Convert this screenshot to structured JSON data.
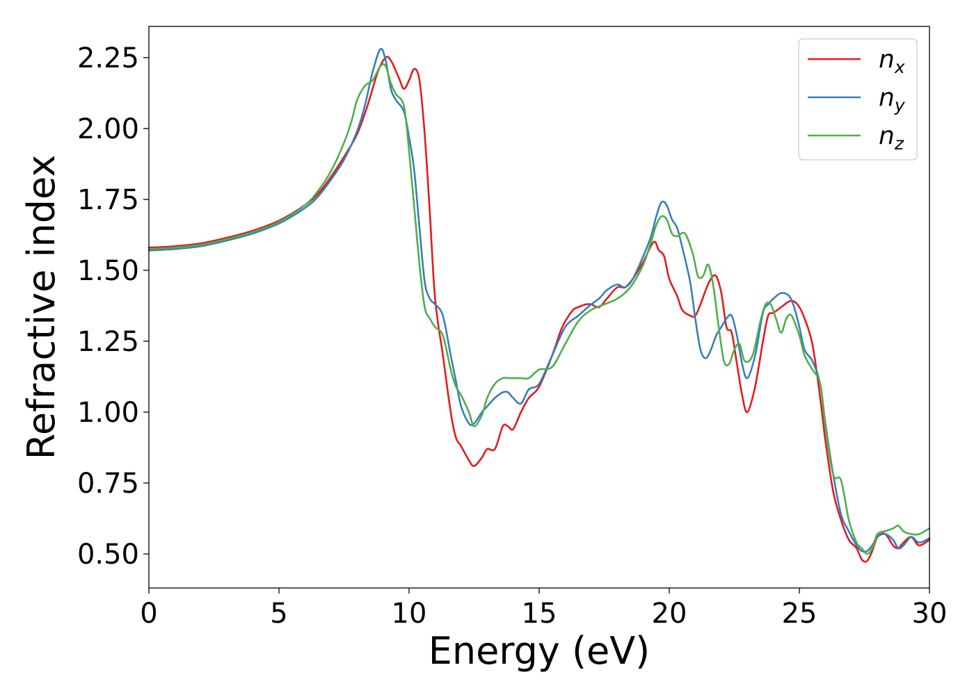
{
  "chart_data": {
    "type": "line",
    "title": "",
    "xlabel": "Energy (eV)",
    "ylabel": "Refractive index",
    "xlim": [
      0,
      30
    ],
    "ylim": [
      0.38,
      2.36
    ],
    "xticks": [
      0,
      5,
      10,
      15,
      20,
      25,
      30
    ],
    "yticks": [
      0.5,
      0.75,
      1.0,
      1.25,
      1.5,
      1.75,
      2.0,
      2.25
    ],
    "xtick_labels": [
      "0",
      "5",
      "10",
      "15",
      "20",
      "25",
      "30"
    ],
    "ytick_labels": [
      "0.50",
      "0.75",
      "1.00",
      "1.25",
      "1.50",
      "1.75",
      "2.00",
      "2.25"
    ],
    "grid": false,
    "legend_position": "top-right",
    "series": [
      {
        "name": "n",
        "subscript": "x",
        "color": "#e41a1c",
        "x": [
          0,
          1,
          2,
          3,
          4,
          5,
          6,
          6.5,
          7,
          7.5,
          8,
          8.4,
          8.8,
          9.1,
          9.3,
          9.6,
          9.8,
          10.0,
          10.2,
          10.4,
          10.6,
          10.8,
          11.0,
          11.3,
          11.6,
          11.8,
          12.0,
          12.3,
          12.5,
          12.8,
          13.0,
          13.3,
          13.6,
          13.8,
          14.0,
          14.3,
          14.6,
          15.0,
          15.5,
          15.8,
          16.0,
          16.3,
          16.5,
          16.8,
          17.0,
          17.3,
          17.6,
          18.0,
          18.3,
          18.6,
          19.0,
          19.4,
          19.6,
          19.8,
          20.0,
          20.3,
          20.5,
          20.8,
          21.0,
          21.2,
          21.4,
          21.6,
          21.8,
          22.0,
          22.2,
          22.4,
          22.6,
          22.8,
          23.0,
          23.3,
          23.6,
          23.8,
          24.0,
          24.3,
          24.6,
          24.8,
          25.0,
          25.2,
          25.5,
          25.8,
          26.0,
          26.3,
          26.6,
          26.9,
          27.2,
          27.4,
          27.6,
          27.8,
          28.0,
          28.3,
          28.6,
          28.8,
          29.0,
          29.3,
          29.6,
          30.0
        ],
        "values": [
          1.58,
          1.585,
          1.595,
          1.615,
          1.64,
          1.675,
          1.73,
          1.77,
          1.83,
          1.9,
          1.98,
          2.08,
          2.2,
          2.25,
          2.24,
          2.18,
          2.14,
          2.17,
          2.21,
          2.17,
          1.98,
          1.7,
          1.4,
          1.2,
          1.0,
          0.91,
          0.88,
          0.83,
          0.81,
          0.84,
          0.87,
          0.87,
          0.95,
          0.95,
          0.94,
          1.0,
          1.05,
          1.09,
          1.2,
          1.28,
          1.32,
          1.36,
          1.37,
          1.38,
          1.38,
          1.37,
          1.4,
          1.44,
          1.44,
          1.47,
          1.53,
          1.6,
          1.57,
          1.55,
          1.47,
          1.41,
          1.36,
          1.34,
          1.34,
          1.38,
          1.43,
          1.47,
          1.48,
          1.42,
          1.3,
          1.28,
          1.17,
          1.06,
          1.0,
          1.09,
          1.25,
          1.34,
          1.35,
          1.37,
          1.39,
          1.39,
          1.37,
          1.33,
          1.24,
          1.05,
          0.9,
          0.72,
          0.62,
          0.55,
          0.52,
          0.48,
          0.475,
          0.51,
          0.56,
          0.57,
          0.53,
          0.52,
          0.54,
          0.56,
          0.53,
          0.55
        ]
      },
      {
        "name": "n",
        "subscript": "y",
        "color": "#377eb8",
        "x": [
          0,
          1,
          2,
          3,
          4,
          5,
          6,
          6.5,
          7,
          7.5,
          8,
          8.3,
          8.6,
          8.9,
          9.1,
          9.3,
          9.5,
          9.8,
          10.0,
          10.2,
          10.4,
          10.6,
          10.8,
          11.0,
          11.3,
          11.6,
          11.8,
          12.0,
          12.3,
          12.5,
          12.8,
          13.0,
          13.3,
          13.6,
          13.8,
          14.0,
          14.3,
          14.6,
          15.0,
          15.5,
          16.0,
          16.5,
          17.0,
          17.3,
          17.6,
          18.0,
          18.3,
          18.6,
          19.0,
          19.3,
          19.5,
          19.7,
          19.9,
          20.1,
          20.3,
          20.5,
          20.8,
          21.0,
          21.2,
          21.4,
          21.6,
          21.8,
          22.0,
          22.2,
          22.4,
          22.6,
          22.8,
          23.0,
          23.3,
          23.6,
          23.8,
          24.0,
          24.3,
          24.6,
          24.8,
          25.0,
          25.2,
          25.5,
          25.8,
          26.0,
          26.3,
          26.6,
          26.9,
          27.2,
          27.4,
          27.6,
          27.8,
          28.0,
          28.3,
          28.6,
          28.8,
          29.0,
          29.3,
          29.6,
          30.0
        ],
        "values": [
          1.57,
          1.575,
          1.585,
          1.605,
          1.63,
          1.665,
          1.72,
          1.76,
          1.82,
          1.89,
          1.99,
          2.08,
          2.2,
          2.28,
          2.24,
          2.14,
          2.1,
          2.06,
          1.97,
          1.85,
          1.65,
          1.46,
          1.4,
          1.38,
          1.34,
          1.2,
          1.11,
          1.02,
          0.96,
          0.96,
          1.0,
          1.02,
          1.05,
          1.07,
          1.07,
          1.05,
          1.03,
          1.08,
          1.1,
          1.2,
          1.3,
          1.34,
          1.38,
          1.4,
          1.43,
          1.45,
          1.44,
          1.47,
          1.55,
          1.62,
          1.69,
          1.74,
          1.73,
          1.68,
          1.65,
          1.58,
          1.46,
          1.33,
          1.22,
          1.19,
          1.22,
          1.27,
          1.3,
          1.33,
          1.34,
          1.27,
          1.17,
          1.12,
          1.2,
          1.35,
          1.38,
          1.4,
          1.42,
          1.41,
          1.37,
          1.3,
          1.22,
          1.18,
          1.1,
          0.96,
          0.78,
          0.64,
          0.58,
          0.53,
          0.51,
          0.51,
          0.53,
          0.56,
          0.57,
          0.55,
          0.52,
          0.53,
          0.56,
          0.54,
          0.555
        ]
      },
      {
        "name": "n",
        "subscript": "z",
        "color": "#4daf4a",
        "x": [
          0,
          1,
          2,
          3,
          4,
          5,
          6,
          6.5,
          7,
          7.5,
          7.8,
          8.0,
          8.3,
          8.6,
          8.9,
          9.1,
          9.3,
          9.5,
          9.8,
          10.0,
          10.2,
          10.4,
          10.6,
          10.8,
          11.0,
          11.3,
          11.6,
          11.8,
          12.0,
          12.3,
          12.5,
          12.8,
          13.0,
          13.3,
          13.6,
          13.8,
          14.0,
          14.3,
          14.6,
          15.0,
          15.5,
          16.0,
          16.5,
          17.0,
          17.5,
          18.0,
          18.5,
          19.0,
          19.3,
          19.5,
          19.7,
          19.9,
          20.1,
          20.3,
          20.6,
          20.9,
          21.1,
          21.3,
          21.5,
          21.7,
          21.9,
          22.1,
          22.3,
          22.5,
          22.7,
          22.9,
          23.2,
          23.5,
          23.7,
          23.9,
          24.1,
          24.3,
          24.5,
          24.7,
          25.0,
          25.2,
          25.5,
          25.8,
          26.0,
          26.3,
          26.6,
          26.9,
          27.2,
          27.4,
          27.6,
          27.8,
          28.0,
          28.3,
          28.6,
          28.8,
          29.0,
          29.3,
          29.6,
          30.0
        ],
        "values": [
          1.575,
          1.58,
          1.59,
          1.61,
          1.635,
          1.67,
          1.73,
          1.78,
          1.85,
          1.95,
          2.03,
          2.1,
          2.15,
          2.17,
          2.22,
          2.22,
          2.16,
          2.12,
          2.08,
          1.92,
          1.72,
          1.52,
          1.37,
          1.33,
          1.3,
          1.27,
          1.15,
          1.09,
          1.06,
          1.0,
          0.95,
          0.99,
          1.05,
          1.1,
          1.12,
          1.12,
          1.12,
          1.12,
          1.12,
          1.15,
          1.16,
          1.24,
          1.32,
          1.36,
          1.38,
          1.4,
          1.44,
          1.52,
          1.6,
          1.66,
          1.69,
          1.68,
          1.63,
          1.62,
          1.63,
          1.56,
          1.48,
          1.48,
          1.52,
          1.44,
          1.3,
          1.18,
          1.17,
          1.22,
          1.24,
          1.18,
          1.2,
          1.32,
          1.38,
          1.38,
          1.33,
          1.28,
          1.33,
          1.34,
          1.27,
          1.2,
          1.15,
          1.1,
          0.95,
          0.78,
          0.76,
          0.62,
          0.54,
          0.52,
          0.5,
          0.52,
          0.57,
          0.58,
          0.59,
          0.6,
          0.58,
          0.57,
          0.57,
          0.59
        ]
      }
    ]
  }
}
